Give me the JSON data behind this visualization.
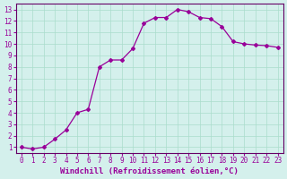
{
  "x": [
    0,
    1,
    2,
    3,
    4,
    5,
    6,
    7,
    8,
    9,
    10,
    11,
    12,
    13,
    14,
    15,
    16,
    17,
    18,
    19,
    20,
    21,
    22,
    23
  ],
  "y": [
    1.0,
    0.85,
    1.0,
    1.7,
    2.5,
    4.0,
    4.3,
    8.0,
    8.6,
    8.6,
    9.6,
    11.8,
    12.3,
    12.3,
    13.0,
    12.8,
    12.3,
    12.2,
    11.5,
    10.2,
    10.0,
    9.9,
    9.85,
    9.7
  ],
  "line_color": "#990099",
  "marker": "D",
  "markersize": 2.0,
  "linewidth": 0.9,
  "xlabel": "Windchill (Refroidissement éolien,°C)",
  "xlabel_fontsize": 6.5,
  "xlim": [
    -0.5,
    23.5
  ],
  "ylim": [
    0.5,
    13.5
  ],
  "yticks": [
    1,
    2,
    3,
    4,
    5,
    6,
    7,
    8,
    9,
    10,
    11,
    12,
    13
  ],
  "xticks": [
    0,
    1,
    2,
    3,
    4,
    5,
    6,
    7,
    8,
    9,
    10,
    11,
    12,
    13,
    14,
    15,
    16,
    17,
    18,
    19,
    20,
    21,
    22,
    23
  ],
  "tick_color": "#990099",
  "tick_fontsize": 5.5,
  "grid_color": "#aaddcc",
  "bg_color": "#d4f0ec",
  "spine_color": "#660066"
}
